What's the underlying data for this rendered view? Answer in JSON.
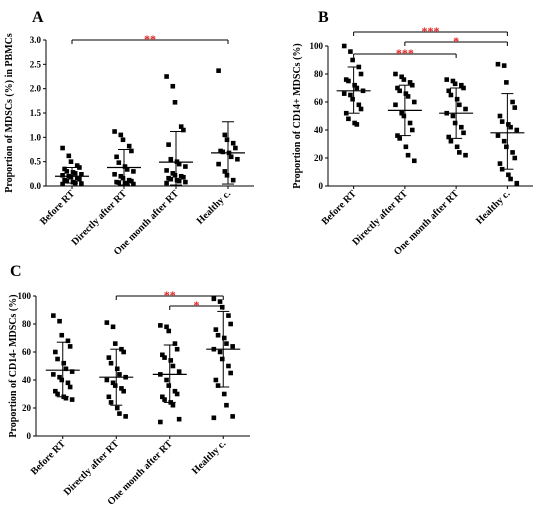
{
  "chart_data": [
    {
      "panel": "A",
      "type": "scatter",
      "ylabel": "Proportion of MDSCs (%) in PBMCs",
      "ylim": [
        0,
        3.0
      ],
      "yticks": [
        "0.0",
        "0.5",
        "1.0",
        "1.5",
        "2.0",
        "2.5",
        "3.0"
      ],
      "categories": [
        "Before RT",
        "Directly after RT",
        "One month after RT",
        "Healthy c."
      ],
      "groups": [
        {
          "points": [
            0.78,
            0.62,
            0.5,
            0.42,
            0.38,
            0.35,
            0.3,
            0.28,
            0.26,
            0.24,
            0.22,
            0.2,
            0.18,
            0.16,
            0.14,
            0.12,
            0.1,
            0.08,
            0.06,
            0.05,
            0.04
          ],
          "mean": 0.2,
          "sd_low": 0.06,
          "sd_high": 0.38
        },
        {
          "points": [
            1.12,
            1.05,
            0.95,
            0.82,
            0.72,
            0.6,
            0.48,
            0.4,
            0.34,
            0.3,
            0.24,
            0.2,
            0.16,
            0.12,
            0.1,
            0.08,
            0.07,
            0.06,
            0.05,
            0.04
          ],
          "mean": 0.38,
          "sd_low": 0.02,
          "sd_high": 0.75
        },
        {
          "points": [
            2.25,
            2.05,
            1.72,
            1.22,
            1.15,
            0.85,
            0.55,
            0.5,
            0.45,
            0.4,
            0.32,
            0.26,
            0.22,
            0.2,
            0.18,
            0.16,
            0.14,
            0.12,
            0.1,
            0.08,
            0.06
          ],
          "mean": 0.49,
          "sd_low": 0.02,
          "sd_high": 1.12
        },
        {
          "points": [
            2.37,
            1.05,
            0.95,
            0.88,
            0.78,
            0.72,
            0.7,
            0.68,
            0.6,
            0.55,
            0.45,
            0.3,
            0.22,
            0.12
          ],
          "mean": 0.68,
          "sd_low": 0.04,
          "sd_high": 1.32
        }
      ],
      "significance": [
        {
          "from": 0,
          "to": 3,
          "label": "**"
        }
      ]
    },
    {
      "panel": "B",
      "type": "scatter",
      "ylabel": "Proportion of CD14+ MDSCs (%)",
      "ylim": [
        0,
        100
      ],
      "yticks": [
        "0",
        "20",
        "40",
        "60",
        "80",
        "100"
      ],
      "categories": [
        "Before RT",
        "Directly after RT",
        "One month after RT",
        "Healthy c."
      ],
      "groups": [
        {
          "points": [
            100,
            96,
            90,
            85,
            80,
            76,
            75,
            72,
            70,
            68,
            66,
            65,
            62,
            58,
            55,
            52,
            48,
            45,
            44
          ],
          "mean": 68,
          "sd_low": 52,
          "sd_high": 85
        },
        {
          "points": [
            80,
            78,
            76,
            74,
            72,
            70,
            68,
            66,
            64,
            60,
            58,
            52,
            50,
            45,
            40,
            36,
            34,
            28,
            22,
            18
          ],
          "mean": 54,
          "sd_low": 36,
          "sd_high": 72
        },
        {
          "points": [
            76,
            75,
            73,
            72,
            70,
            68,
            65,
            62,
            58,
            55,
            52,
            50,
            45,
            42,
            38,
            35,
            32,
            28,
            24,
            22
          ],
          "mean": 52,
          "sd_low": 34,
          "sd_high": 70
        },
        {
          "points": [
            87,
            86,
            74,
            60,
            56,
            50,
            46,
            44,
            42,
            40,
            36,
            32,
            28,
            24,
            20,
            16,
            12,
            8,
            5,
            2
          ],
          "mean": 38,
          "sd_low": 12,
          "sd_high": 66
        }
      ],
      "significance": [
        {
          "from": 0,
          "to": 3,
          "label": "***"
        },
        {
          "from": 1,
          "to": 3,
          "label": "*"
        },
        {
          "from": 0,
          "to": 2,
          "label": "***"
        }
      ]
    },
    {
      "panel": "C",
      "type": "scatter",
      "ylabel": "Proportion of CD14- MDSCs (%)",
      "ylim": [
        0,
        100
      ],
      "yticks": [
        "0",
        "20",
        "40",
        "60",
        "80",
        "100"
      ],
      "categories": [
        "Before RT",
        "Directly after RT",
        "One month after RT",
        "Healthy c."
      ],
      "groups": [
        {
          "points": [
            86,
            82,
            72,
            68,
            64,
            60,
            55,
            52,
            48,
            46,
            44,
            42,
            40,
            38,
            35,
            32,
            30,
            28,
            27,
            26
          ],
          "mean": 47,
          "sd_low": 28,
          "sd_high": 67
        },
        {
          "points": [
            81,
            78,
            66,
            62,
            60,
            56,
            52,
            48,
            44,
            42,
            40,
            38,
            36,
            34,
            32,
            28,
            24,
            20,
            16,
            14
          ],
          "mean": 42,
          "sd_low": 22,
          "sd_high": 62
        },
        {
          "points": [
            79,
            78,
            75,
            66,
            62,
            58,
            56,
            54,
            50,
            46,
            44,
            40,
            36,
            32,
            30,
            28,
            26,
            24,
            22,
            12,
            10
          ],
          "mean": 44,
          "sd_low": 24,
          "sd_high": 65
        },
        {
          "points": [
            98,
            96,
            92,
            86,
            80,
            76,
            72,
            70,
            66,
            64,
            62,
            60,
            55,
            50,
            45,
            40,
            36,
            30,
            22,
            14,
            13
          ],
          "mean": 62,
          "sd_low": 35,
          "sd_high": 89
        }
      ],
      "significance": [
        {
          "from": 1,
          "to": 3,
          "label": "**"
        },
        {
          "from": 2,
          "to": 3,
          "label": "*"
        }
      ]
    }
  ]
}
